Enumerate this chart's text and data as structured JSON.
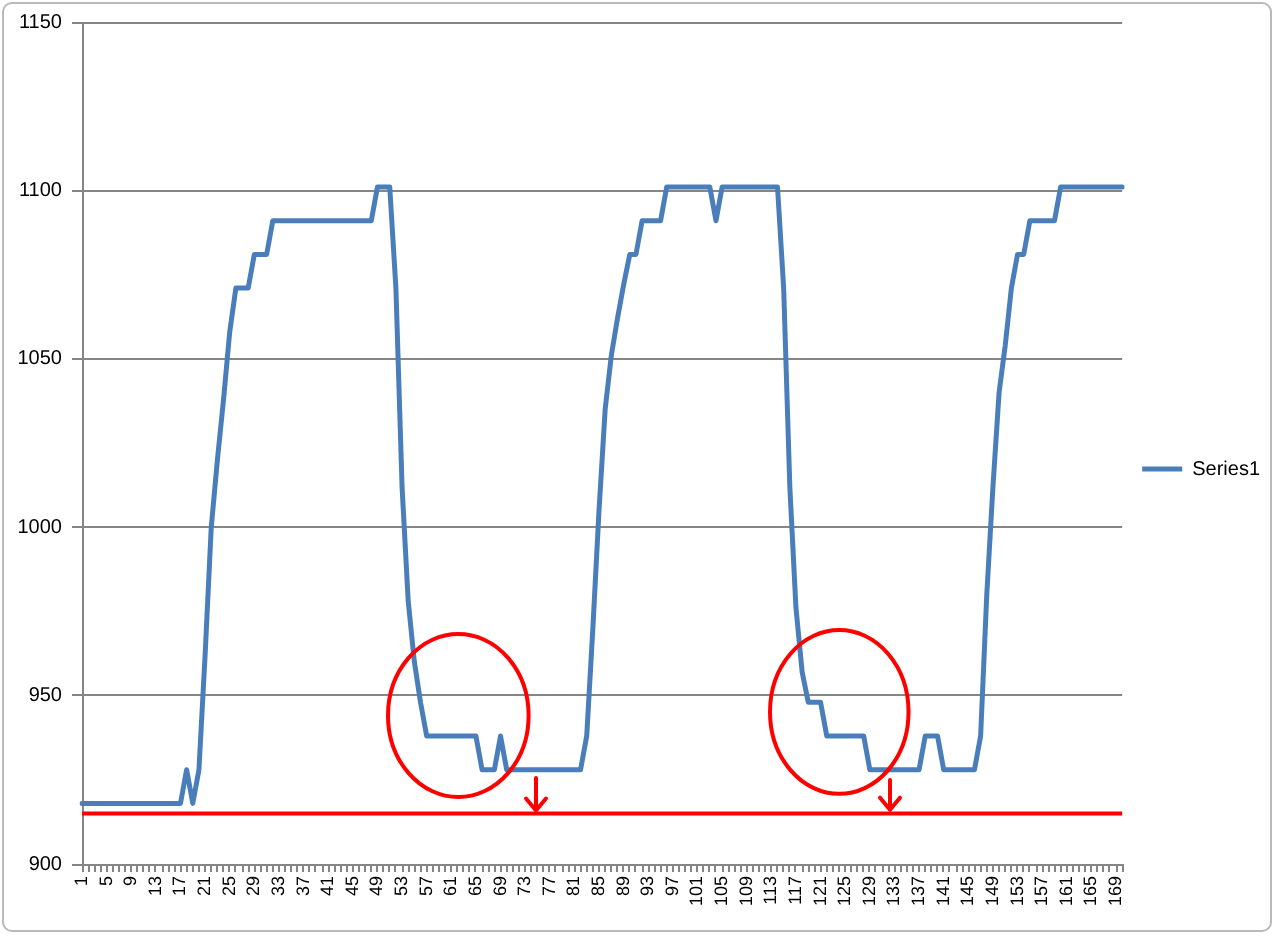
{
  "chart_data": {
    "type": "line",
    "categories": [
      "1",
      null,
      null,
      null,
      "5",
      null,
      null,
      null,
      "9",
      null,
      null,
      null,
      "13",
      null,
      null,
      null,
      "17",
      null,
      null,
      null,
      "21",
      null,
      null,
      null,
      "25",
      null,
      null,
      null,
      "29",
      null,
      null,
      null,
      "33",
      null,
      null,
      null,
      "37",
      null,
      null,
      null,
      "41",
      null,
      null,
      null,
      "45",
      null,
      null,
      null,
      "49",
      null,
      null,
      null,
      "53",
      null,
      null,
      null,
      "57",
      null,
      null,
      null,
      "61",
      null,
      null,
      null,
      "65",
      null,
      null,
      null,
      "69",
      null,
      null,
      null,
      "73",
      null,
      null,
      null,
      "77",
      null,
      null,
      null,
      "81",
      null,
      null,
      null,
      "85",
      null,
      null,
      null,
      "89",
      null,
      null,
      null,
      "93",
      null,
      null,
      null,
      "97",
      null,
      null,
      null,
      "101",
      null,
      null,
      null,
      "105",
      null,
      null,
      null,
      "109",
      null,
      null,
      null,
      "113",
      null,
      null,
      null,
      "117",
      null,
      null,
      null,
      "121",
      null,
      null,
      null,
      "125",
      null,
      null,
      null,
      "129",
      null,
      null,
      null,
      "133",
      null,
      null,
      null,
      "137",
      null,
      null,
      null,
      "141",
      null,
      null,
      null,
      "145",
      null,
      null,
      null,
      "149",
      null,
      null,
      null,
      "153",
      null,
      null,
      null,
      "157",
      null,
      null,
      null,
      "161",
      null,
      null,
      null,
      "165",
      null,
      null,
      null,
      "169",
      null
    ],
    "series": [
      {
        "name": "Series1",
        "color": "#4a7ebb",
        "values": [
          918,
          918,
          918,
          918,
          918,
          918,
          918,
          918,
          918,
          918,
          918,
          918,
          918,
          918,
          918,
          918,
          918,
          928,
          918,
          928,
          962,
          1000,
          1020,
          1038,
          1058,
          1071,
          1071,
          1071,
          1081,
          1081,
          1081,
          1091,
          1091,
          1091,
          1091,
          1091,
          1091,
          1091,
          1091,
          1091,
          1091,
          1091,
          1091,
          1091,
          1091,
          1091,
          1091,
          1091,
          1101,
          1101,
          1101,
          1071,
          1012,
          978,
          960,
          948,
          938,
          938,
          938,
          938,
          938,
          938,
          938,
          938,
          938,
          928,
          928,
          928,
          938,
          928,
          928,
          928,
          928,
          928,
          928,
          928,
          928,
          928,
          928,
          928,
          928,
          928,
          938,
          970,
          1005,
          1035,
          1051,
          1062,
          1072,
          1081,
          1081,
          1091,
          1091,
          1091,
          1091,
          1101,
          1101,
          1101,
          1101,
          1101,
          1101,
          1101,
          1101,
          1091,
          1101,
          1101,
          1101,
          1101,
          1101,
          1101,
          1101,
          1101,
          1101,
          1101,
          1071,
          1012,
          976,
          957,
          948,
          948,
          948,
          938,
          938,
          938,
          938,
          938,
          938,
          938,
          928,
          928,
          928,
          928,
          928,
          928,
          928,
          928,
          928,
          938,
          938,
          938,
          928,
          928,
          928,
          928,
          928,
          928,
          938,
          980,
          1012,
          1040,
          1054,
          1071,
          1081,
          1081,
          1091,
          1091,
          1091,
          1091,
          1091,
          1101,
          1101,
          1101,
          1101,
          1101,
          1101,
          1101,
          1101,
          1101,
          1101,
          1101
        ]
      }
    ],
    "ylim": [
      900,
      1150
    ],
    "yticks": [
      900,
      950,
      1000,
      1050,
      1100,
      1150
    ],
    "grid": "y",
    "legend": "right",
    "marker": "none",
    "ref_lines": [
      {
        "axis": "y",
        "value": 915,
        "color": "#ff0000"
      }
    ]
  }
}
